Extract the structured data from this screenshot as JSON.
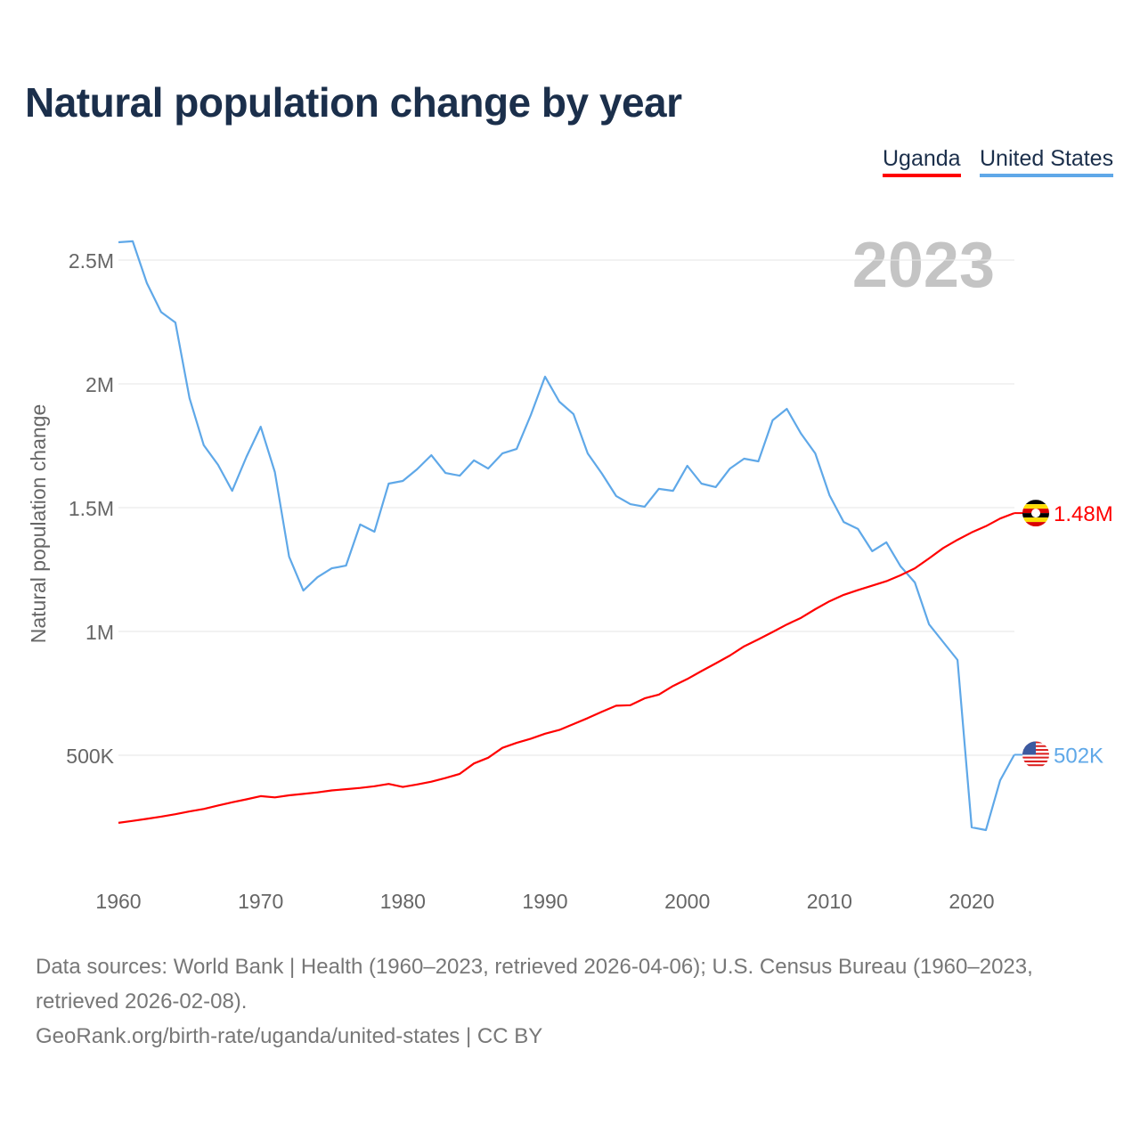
{
  "title": "Natural population change by year",
  "year_label": "2023",
  "footer": {
    "sources": "Data sources: World Bank | Health (1960–2023, retrieved 2026-04-06); U.S. Census Bureau (1960–2023, retrieved 2026-02-08).",
    "link": "GeoRank.org/birth-rate/uganda/united-states | CC BY"
  },
  "chart_data": {
    "type": "line",
    "title": "Natural population change by year",
    "xlabel": "",
    "ylabel": "Natural population change",
    "xlim": [
      1960,
      2023
    ],
    "ylim": [
      0,
      2700000
    ],
    "grid": true,
    "legend_position": "top-right",
    "x_ticks": [
      1960,
      1970,
      1980,
      1990,
      2000,
      2010,
      2020
    ],
    "x_tick_labels": [
      "1960",
      "1970",
      "1980",
      "1990",
      "2000",
      "2010",
      "2020"
    ],
    "y_ticks": [
      500000,
      1000000,
      1500000,
      2000000,
      2500000
    ],
    "y_tick_labels": [
      "500K",
      "1M",
      "1.5M",
      "2M",
      "2.5M"
    ],
    "x": [
      1960,
      1961,
      1962,
      1963,
      1964,
      1965,
      1966,
      1967,
      1968,
      1969,
      1970,
      1971,
      1972,
      1973,
      1974,
      1975,
      1976,
      1977,
      1978,
      1979,
      1980,
      1981,
      1982,
      1983,
      1984,
      1985,
      1986,
      1987,
      1988,
      1989,
      1990,
      1991,
      1992,
      1993,
      1994,
      1995,
      1996,
      1997,
      1998,
      1999,
      2000,
      2001,
      2002,
      2003,
      2004,
      2005,
      2006,
      2007,
      2008,
      2009,
      2010,
      2011,
      2012,
      2013,
      2014,
      2015,
      2016,
      2017,
      2018,
      2019,
      2020,
      2021,
      2022,
      2023
    ],
    "series": [
      {
        "name": "Uganda",
        "color": "#ff0000",
        "end_label": "1.48M",
        "values": [
          0.227,
          0.235,
          0.243,
          0.252,
          0.262,
          0.273,
          0.283,
          0.297,
          0.31,
          0.322,
          0.335,
          0.33,
          0.338,
          0.344,
          0.35,
          0.358,
          0.363,
          0.368,
          0.375,
          0.384,
          0.372,
          0.382,
          0.393,
          0.408,
          0.425,
          0.467,
          0.49,
          0.53,
          0.55,
          0.567,
          0.587,
          0.602,
          0.626,
          0.65,
          0.676,
          0.7,
          0.702,
          0.73,
          0.745,
          0.78,
          0.808,
          0.84,
          0.871,
          0.903,
          0.94,
          0.968,
          0.998,
          1.028,
          1.055,
          1.09,
          1.122,
          1.148,
          1.167,
          1.185,
          1.203,
          1.227,
          1.255,
          1.295,
          1.337,
          1.37,
          1.4,
          1.425,
          1.456,
          1.478
        ]
      },
      {
        "name": "United States",
        "color": "#5fa8e8",
        "end_label": "502K",
        "values": [
          2.572,
          2.576,
          2.407,
          2.29,
          2.248,
          1.942,
          1.752,
          1.673,
          1.568,
          1.705,
          1.827,
          1.644,
          1.302,
          1.165,
          1.219,
          1.255,
          1.266,
          1.432,
          1.403,
          1.597,
          1.608,
          1.655,
          1.712,
          1.64,
          1.629,
          1.691,
          1.658,
          1.719,
          1.737,
          1.874,
          2.029,
          1.928,
          1.878,
          1.719,
          1.637,
          1.547,
          1.514,
          1.504,
          1.576,
          1.568,
          1.669,
          1.597,
          1.583,
          1.658,
          1.698,
          1.687,
          1.853,
          1.899,
          1.799,
          1.719,
          1.55,
          1.442,
          1.414,
          1.324,
          1.36,
          1.263,
          1.198,
          1.029,
          0.957,
          0.885,
          0.209,
          0.198,
          0.399,
          0.502
        ]
      }
    ],
    "values_unit": "millions"
  }
}
